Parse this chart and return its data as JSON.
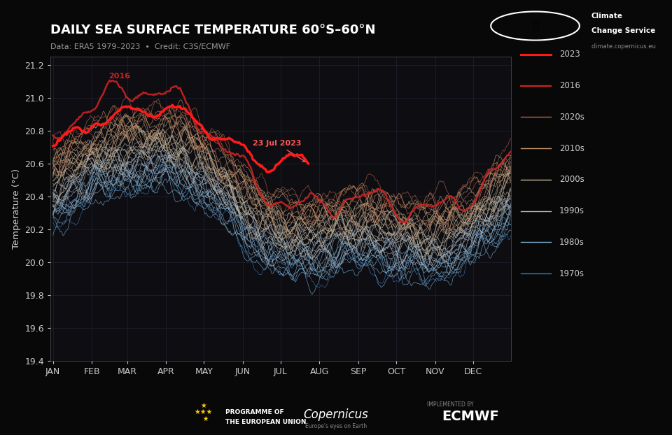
{
  "title": "DAILY SEA SURFACE TEMPERATURE 60°S–60°N",
  "subtitle": "Data: ERA5 1979–2023  •  Credit: C3S/ECMWF",
  "ylabel": "Temperature (°C)",
  "ylim": [
    19.4,
    21.25
  ],
  "yticks": [
    19.4,
    19.6,
    19.8,
    20.0,
    20.2,
    20.4,
    20.6,
    20.8,
    21.0,
    21.2
  ],
  "bg_color": "#080808",
  "plot_bg": "#0d0d12",
  "grid_color": "#222233",
  "text_color": "#cccccc",
  "months": [
    "JAN",
    "FEB",
    "MAR",
    "APR",
    "MAY",
    "JUN",
    "JUL",
    "AUG",
    "SEP",
    "OCT",
    "NOV",
    "DEC"
  ],
  "decade_colors": {
    "1970s": "#3a7abf",
    "1980s": "#7ab0d4",
    "1990s": "#b0b8c0",
    "2000s": "#c8b89a",
    "2010s": "#c89870",
    "2020s": "#b86848"
  },
  "color_2023": "#ff1a1a",
  "color_2016": "#cc2222",
  "annotation_color": "#ff5555",
  "start_year": 1979,
  "end_year": 2023
}
